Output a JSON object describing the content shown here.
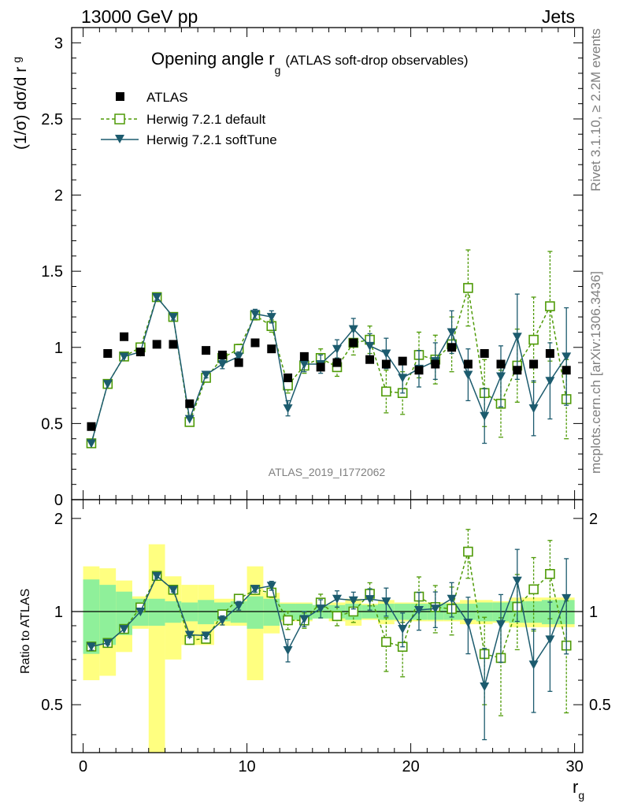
{
  "header": {
    "energy_label": "13000 GeV pp",
    "process_label": "Jets"
  },
  "side_labels": {
    "rivet": "Rivet 3.1.10, ≥ 2.2M events",
    "mcplots": "mcplots.cern.ch [arXiv:1306.3436]"
  },
  "chart_data": {
    "type": "scatter",
    "title": "Opening angle r",
    "title_subscript": "g",
    "title_suffix": "(ATLAS soft-drop observables)",
    "ylabel_main": "(1/σ) dσ/d r",
    "ylabel_main_sub": "g",
    "ylabel_ratio": "Ratio to ATLAS",
    "xlabel": "r",
    "xlabel_sub": "g",
    "watermark": "ATLAS_2019_I1772062",
    "xlim": [
      -0.7,
      30.5
    ],
    "ylim_main": [
      0,
      3.1
    ],
    "ylim_ratio": [
      0.35,
      2.3
    ],
    "x_ticks": [
      "0",
      "10",
      "20",
      "30"
    ],
    "y_ticks_main": [
      "0",
      "0.5",
      "1",
      "1.5",
      "2",
      "2.5",
      "3"
    ],
    "y_ticks_ratio": [
      "0.5",
      "1",
      "2"
    ],
    "legend": [
      "ATLAS",
      "Herwig 7.2.1 default",
      "Herwig 7.2.1 softTune"
    ],
    "x": [
      0.5,
      1.5,
      2.5,
      3.5,
      4.5,
      5.5,
      6.5,
      7.5,
      8.5,
      9.5,
      10.5,
      11.5,
      12.5,
      13.5,
      14.5,
      15.5,
      16.5,
      17.5,
      18.5,
      19.5,
      20.5,
      21.5,
      22.5,
      23.5,
      24.5,
      25.5,
      26.5,
      27.5,
      28.5,
      29.5
    ],
    "series": [
      {
        "name": "ATLAS",
        "values": [
          0.48,
          0.96,
          1.07,
          0.97,
          1.02,
          1.02,
          0.63,
          0.98,
          0.95,
          0.9,
          1.03,
          0.99,
          0.8,
          0.94,
          0.87,
          0.9,
          1.03,
          0.92,
          0.89,
          0.91,
          0.85,
          0.89,
          1.0,
          0.89,
          0.96,
          0.89,
          0.85,
          0.89,
          0.96,
          0.85
        ],
        "band_inner": [
          0.27,
          0.22,
          0.16,
          0.1,
          0.1,
          0.08,
          0.07,
          0.09,
          0.07,
          0.08,
          0.12,
          0.1,
          0.06,
          0.06,
          0.05,
          0.05,
          0.06,
          0.05,
          0.06,
          0.06,
          0.06,
          0.06,
          0.06,
          0.06,
          0.07,
          0.07,
          0.08,
          0.08,
          0.09,
          0.09
        ],
        "band_outer": [
          0.4,
          0.38,
          0.26,
          0.12,
          0.65,
          0.3,
          0.22,
          0.22,
          0.1,
          0.1,
          0.4,
          0.15,
          0.07,
          0.07,
          0.05,
          0.07,
          0.1,
          0.06,
          0.09,
          0.07,
          0.07,
          0.07,
          0.07,
          0.09,
          0.09,
          0.08,
          0.11,
          0.11,
          0.11,
          0.11
        ]
      },
      {
        "name": "Herwig 7.2.1 default",
        "values": [
          0.37,
          0.76,
          0.94,
          1.0,
          1.33,
          1.2,
          0.51,
          0.8,
          0.93,
          0.99,
          1.21,
          1.14,
          0.75,
          0.88,
          0.93,
          0.87,
          1.03,
          1.05,
          0.71,
          0.7,
          0.95,
          0.92,
          1.02,
          1.39,
          0.7,
          0.63,
          0.88,
          1.05,
          1.27,
          0.66
        ],
        "errors": [
          0.01,
          0.01,
          0.01,
          0.01,
          0.02,
          0.02,
          0.01,
          0.02,
          0.03,
          0.03,
          0.03,
          0.04,
          0.05,
          0.05,
          0.06,
          0.06,
          0.08,
          0.09,
          0.14,
          0.14,
          0.15,
          0.16,
          0.18,
          0.25,
          0.22,
          0.22,
          0.24,
          0.28,
          0.36,
          0.26
        ]
      },
      {
        "name": "Herwig 7.2.1 softTune",
        "values": [
          0.37,
          0.76,
          0.94,
          0.97,
          1.33,
          1.2,
          0.53,
          0.82,
          0.89,
          0.94,
          1.22,
          1.2,
          0.6,
          0.89,
          0.89,
          0.99,
          1.12,
          1.01,
          0.96,
          0.8,
          0.86,
          0.91,
          1.1,
          0.82,
          0.55,
          0.81,
          1.07,
          0.6,
          0.78,
          0.94
        ],
        "errors": [
          0.01,
          0.01,
          0.01,
          0.01,
          0.02,
          0.02,
          0.01,
          0.02,
          0.03,
          0.03,
          0.03,
          0.04,
          0.05,
          0.05,
          0.06,
          0.06,
          0.07,
          0.08,
          0.1,
          0.1,
          0.12,
          0.12,
          0.14,
          0.17,
          0.18,
          0.2,
          0.28,
          0.18,
          0.25,
          0.32
        ]
      }
    ]
  },
  "colors": {
    "data": "#000000",
    "default": "#4e9a06",
    "softtune": "#1c5b6e",
    "band_inner": "#8ff09a",
    "band_outer": "#ffff80"
  }
}
